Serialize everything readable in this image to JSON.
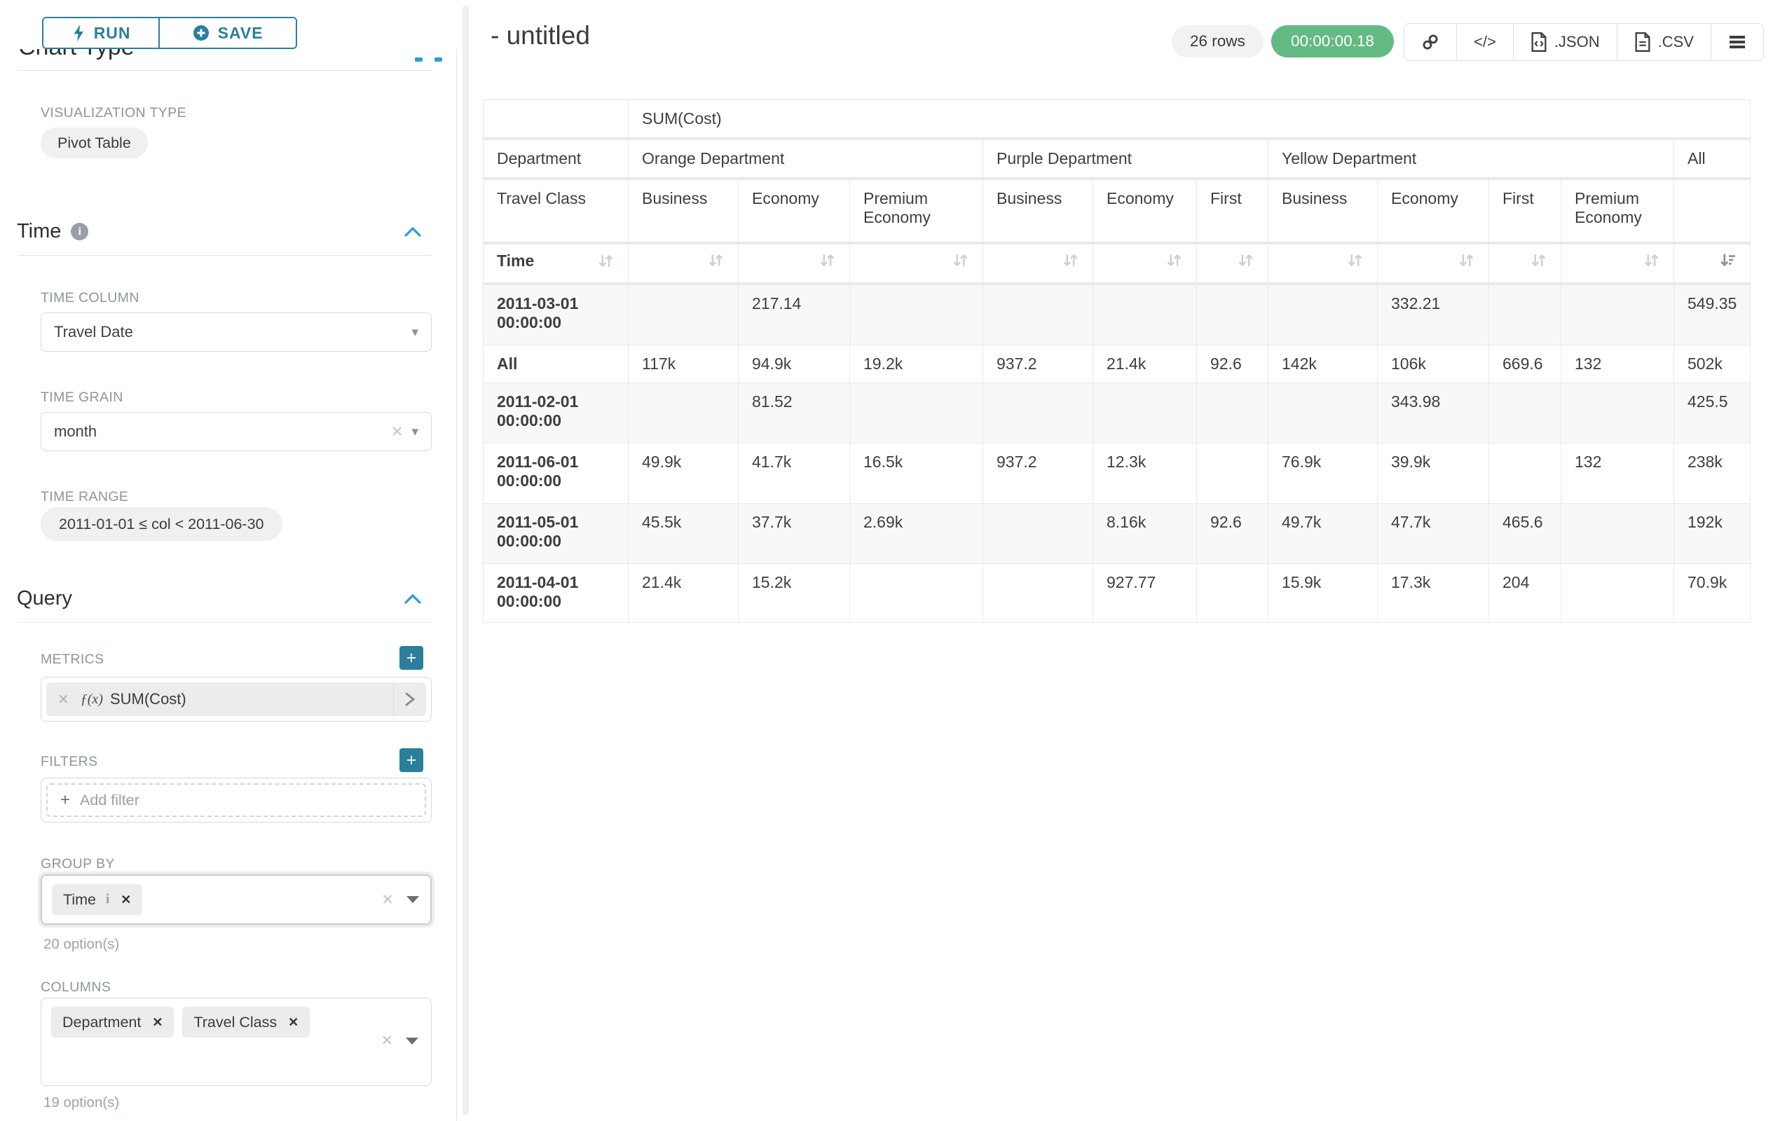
{
  "sidebar": {
    "run_label": "RUN",
    "save_label": "SAVE",
    "clipped_heading": "Chart Type",
    "viz_type_label": "VISUALIZATION TYPE",
    "viz_type_value": "Pivot Table",
    "time_section": {
      "title": "Time",
      "time_column_label": "TIME COLUMN",
      "time_column_value": "Travel Date",
      "time_grain_label": "TIME GRAIN",
      "time_grain_value": "month",
      "time_range_label": "TIME RANGE",
      "time_range_value": "2011-01-01 ≤ col < 2011-06-30"
    },
    "query_section": {
      "title": "Query",
      "metrics_label": "METRICS",
      "metric_prefix": "ƒ(x)",
      "metric_value": "SUM(Cost)",
      "filters_label": "FILTERS",
      "add_filter_placeholder": "Add filter",
      "group_by_label": "GROUP BY",
      "group_by_chips": [
        "Time"
      ],
      "group_by_hint": "20 option(s)",
      "columns_label": "COLUMNS",
      "columns_chips": [
        "Department",
        "Travel Class"
      ],
      "columns_hint": "19 option(s)"
    }
  },
  "header": {
    "title": "- untitled",
    "row_count_badge": "26 rows",
    "timer_badge": "00:00:00.18",
    "code_glyph": "</>",
    "json_label": ".JSON",
    "csv_label": ".CSV"
  },
  "colors": {
    "accent_teal": "#2b7f9d",
    "chevron_blue": "#2b9cd8",
    "timer_green": "#63ba83",
    "stripe_gray": "#f8f8f8"
  },
  "table": {
    "metric_header": "SUM(Cost)",
    "department_header": "Department",
    "travel_class_header": "Travel Class",
    "time_header": "Time",
    "groups": [
      {
        "label": "Orange Department",
        "cols": [
          "Business",
          "Economy",
          "Premium Economy"
        ]
      },
      {
        "label": "Purple Department",
        "cols": [
          "Business",
          "Economy",
          "First"
        ]
      },
      {
        "label": "Yellow Department",
        "cols": [
          "Business",
          "Economy",
          "First",
          "Premium Economy"
        ]
      },
      {
        "label": "All",
        "cols": [
          ""
        ]
      }
    ],
    "sort_state": {
      "sorted_column": "All",
      "direction": "desc"
    },
    "rows": [
      {
        "label": "2011-03-01 00:00:00",
        "values": [
          "",
          "217.14",
          "",
          "",
          "",
          "",
          "",
          "332.21",
          "",
          "",
          "549.35"
        ]
      },
      {
        "label": "All",
        "values": [
          "117k",
          "94.9k",
          "19.2k",
          "937.2",
          "21.4k",
          "92.6",
          "142k",
          "106k",
          "669.6",
          "132",
          "502k"
        ]
      },
      {
        "label": "2011-02-01 00:00:00",
        "values": [
          "",
          "81.52",
          "",
          "",
          "",
          "",
          "",
          "343.98",
          "",
          "",
          "425.5"
        ]
      },
      {
        "label": "2011-06-01 00:00:00",
        "values": [
          "49.9k",
          "41.7k",
          "16.5k",
          "937.2",
          "12.3k",
          "",
          "76.9k",
          "39.9k",
          "",
          "132",
          "238k"
        ]
      },
      {
        "label": "2011-05-01 00:00:00",
        "values": [
          "45.5k",
          "37.7k",
          "2.69k",
          "",
          "8.16k",
          "92.6",
          "49.7k",
          "47.7k",
          "465.6",
          "",
          "192k"
        ]
      },
      {
        "label": "2011-04-01 00:00:00",
        "values": [
          "21.4k",
          "15.2k",
          "",
          "",
          "927.77",
          "",
          "15.9k",
          "17.3k",
          "204",
          "",
          "70.9k"
        ]
      }
    ]
  }
}
